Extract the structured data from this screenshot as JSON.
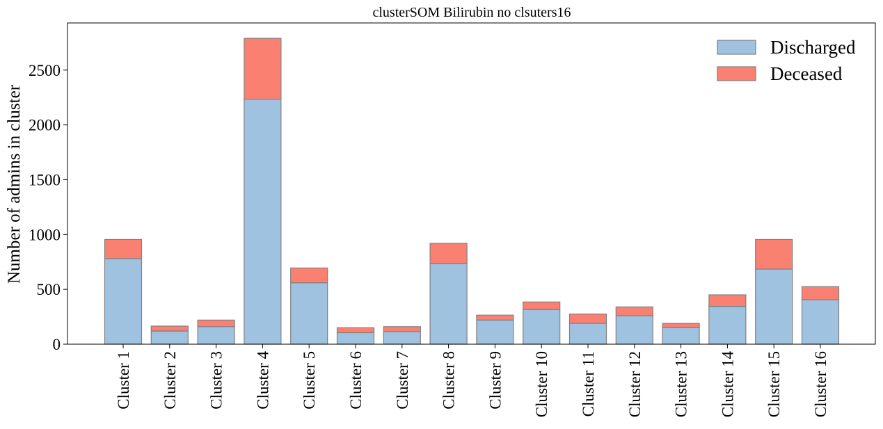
{
  "chart_data": {
    "type": "bar",
    "stacked": true,
    "title": "clusterSOM Bilirubin no clsuters16",
    "xlabel": "",
    "ylabel": "Number of admins in cluster",
    "ylim": [
      0,
      2930
    ],
    "yticks": [
      0,
      500,
      1000,
      1500,
      2000,
      2500
    ],
    "grid": false,
    "legend_position": "top-right",
    "categories": [
      "Cluster 1",
      "Cluster 2",
      "Cluster 3",
      "Cluster 4",
      "Cluster 5",
      "Cluster 6",
      "Cluster 7",
      "Cluster 8",
      "Cluster 9",
      "Cluster 10",
      "Cluster 11",
      "Cluster 12",
      "Cluster 13",
      "Cluster 14",
      "Cluster 15",
      "Cluster 16"
    ],
    "series": [
      {
        "name": "Discharged",
        "color": "#9fc2e1",
        "values": [
          780,
          120,
          160,
          2235,
          560,
          105,
          115,
          735,
          220,
          315,
          190,
          260,
          150,
          345,
          685,
          405
        ]
      },
      {
        "name": "Deceased",
        "color": "#fa8072",
        "values": [
          175,
          45,
          60,
          555,
          135,
          45,
          45,
          185,
          45,
          70,
          85,
          80,
          40,
          105,
          270,
          120
        ]
      }
    ],
    "edge_color": "#808080"
  }
}
